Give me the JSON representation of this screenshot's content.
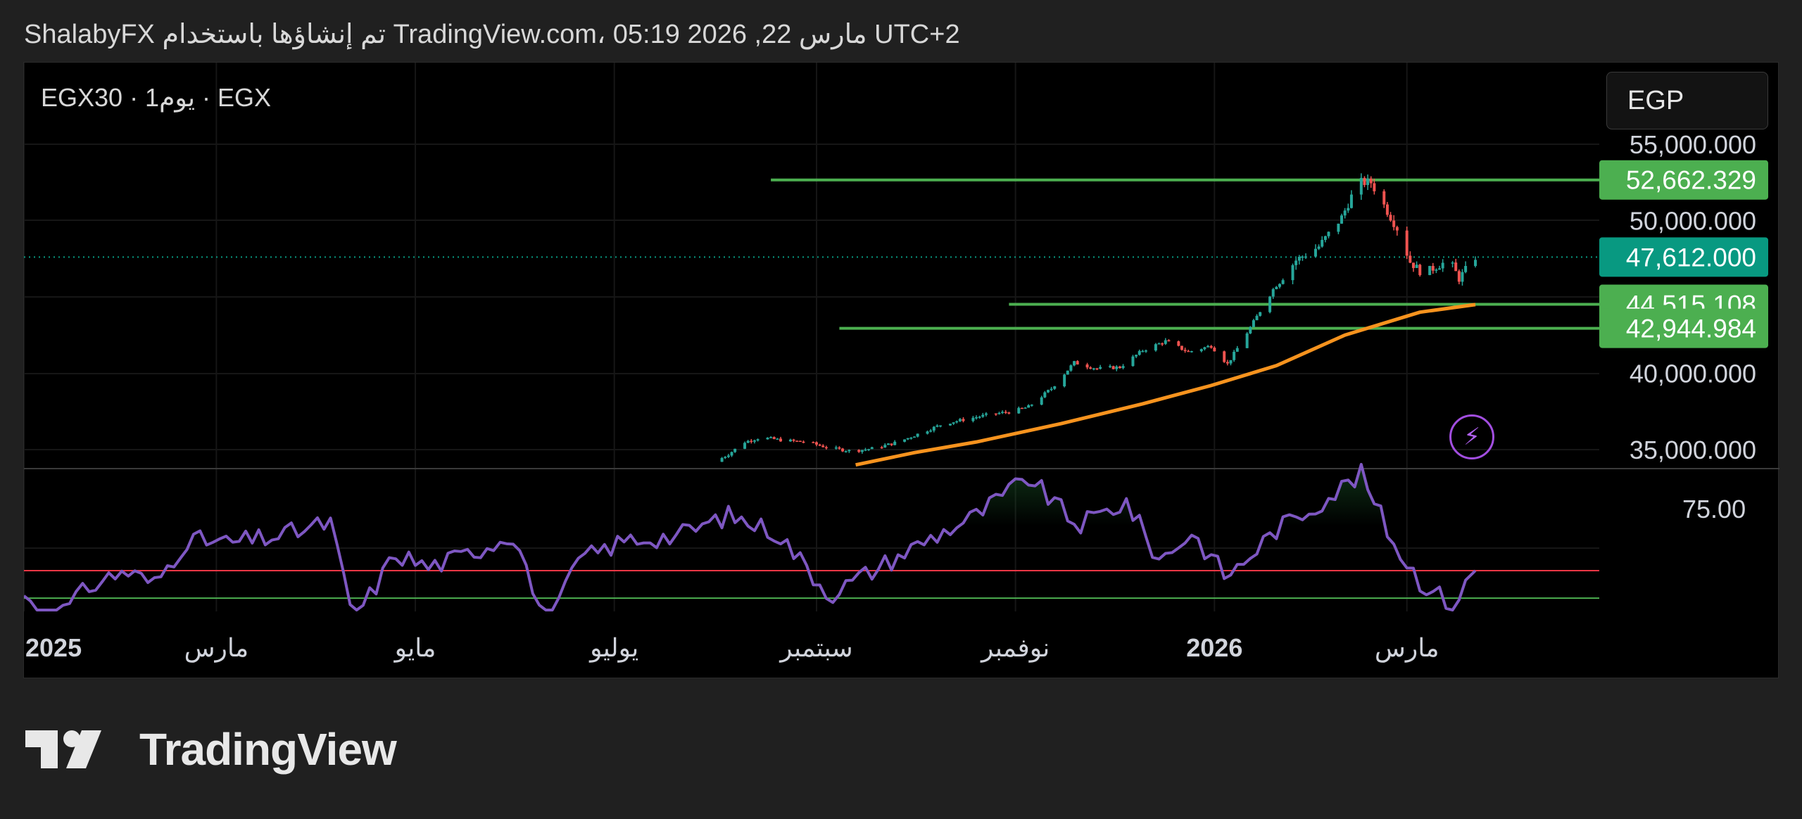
{
  "header": {
    "text": "ShalabyFX تم إنشاؤها باستخدام TradingView.com، 05:19 2026 ,22 مارس UTC+2"
  },
  "symbol": {
    "label": "EGX30 · 1يوم · EGX"
  },
  "currency": "EGP",
  "brand": {
    "name": "TradingView"
  },
  "icons": {
    "bolt": "lightning-bolt-icon",
    "logo": "tradingview-logo-icon"
  },
  "colors": {
    "background": "#000000",
    "page_background": "#202020",
    "candle_up": "#26a69a",
    "candle_down": "#ef5350",
    "level_lines": "#4caf50",
    "moving_average": "#f7931e",
    "oscillator": "#7e57c2",
    "upper_band": "#f23645",
    "lower_band": "#4caf50",
    "current_price_tag": "#089981"
  },
  "chart_data": [
    {
      "type": "candlestick",
      "title": "EGX30 · 1يوم · EGX",
      "currency": "EGP",
      "x_axis_labels": [
        "2025",
        "مارس",
        "مايو",
        "يوليو",
        "سبتمبر",
        "نوفمبر",
        "2026",
        "مارس"
      ],
      "y_axis_labels": [
        "55,000.000",
        "50,000.000",
        "40,000.000",
        "35,000.000"
      ],
      "ylim": [
        33800,
        56200
      ],
      "grid": true,
      "current_price": 47612.0,
      "horizontal_levels": [
        52662.329,
        44515.108,
        42944.984
      ],
      "price_tags": [
        "52,662.329",
        "47,612.000",
        "44,515.108",
        "42,944.984"
      ],
      "close_path": [
        [
          "2025-08-01",
          34200
        ],
        [
          "2025-08-05",
          34700
        ],
        [
          "2025-08-10",
          35500
        ],
        [
          "2025-08-15",
          35800
        ],
        [
          "2025-08-22",
          35600
        ],
        [
          "2025-08-29",
          35500
        ],
        [
          "2025-09-05",
          35100
        ],
        [
          "2025-09-12",
          34900
        ],
        [
          "2025-09-19",
          35100
        ],
        [
          "2025-09-26",
          35500
        ],
        [
          "2025-10-03",
          36100
        ],
        [
          "2025-10-10",
          36700
        ],
        [
          "2025-10-17",
          37000
        ],
        [
          "2025-10-24",
          37300
        ],
        [
          "2025-10-31",
          37500
        ],
        [
          "2025-11-05",
          37800
        ],
        [
          "2025-11-12",
          39000
        ],
        [
          "2025-11-19",
          40700
        ],
        [
          "2025-11-26",
          40300
        ],
        [
          "2025-12-03",
          40400
        ],
        [
          "2025-12-10",
          41500
        ],
        [
          "2025-12-17",
          42100
        ],
        [
          "2025-12-24",
          41400
        ],
        [
          "2025-12-31",
          41800
        ],
        [
          "2026-01-05",
          40600
        ],
        [
          "2026-01-12",
          43000
        ],
        [
          "2026-01-19",
          45500
        ],
        [
          "2026-01-26",
          47400
        ],
        [
          "2026-02-02",
          48300
        ],
        [
          "2026-02-09",
          50200
        ],
        [
          "2026-02-14",
          52500
        ],
        [
          "2026-02-18",
          52500
        ],
        [
          "2026-02-22",
          51000
        ],
        [
          "2026-02-26",
          49500
        ],
        [
          "2026-03-02",
          47300
        ],
        [
          "2026-03-06",
          46500
        ],
        [
          "2026-03-10",
          47000
        ],
        [
          "2026-03-14",
          47400
        ],
        [
          "2026-03-17",
          46200
        ],
        [
          "2026-03-22",
          47612
        ]
      ],
      "moving_average": [
        [
          "2025-09-13",
          34000
        ],
        [
          "2025-10-01",
          34800
        ],
        [
          "2025-10-20",
          35500
        ],
        [
          "2025-11-15",
          36700
        ],
        [
          "2025-12-10",
          38000
        ],
        [
          "2025-12-31",
          39200
        ],
        [
          "2026-01-20",
          40500
        ],
        [
          "2026-02-10",
          42500
        ],
        [
          "2026-03-05",
          44000
        ],
        [
          "2026-03-22",
          44500
        ]
      ]
    },
    {
      "type": "line",
      "title": "oscillator",
      "y_axis_labels": [
        "75.00"
      ],
      "upper_band": 57,
      "lower_band": 49,
      "series": [
        {
          "values": [
            [
              "2025-01-01",
              50
            ],
            [
              "2025-01-08",
              41
            ],
            [
              "2025-01-15",
              47
            ],
            [
              "2025-01-22",
              53
            ],
            [
              "2025-02-01",
              57
            ],
            [
              "2025-02-10",
              53
            ],
            [
              "2025-02-20",
              66
            ],
            [
              "2025-03-05",
              65
            ],
            [
              "2025-03-20",
              67
            ],
            [
              "2025-04-05",
              71
            ],
            [
              "2025-04-12",
              42
            ],
            [
              "2025-04-25",
              62
            ],
            [
              "2025-05-05",
              58
            ],
            [
              "2025-05-15",
              61
            ],
            [
              "2025-06-01",
              68
            ],
            [
              "2025-06-10",
              38
            ],
            [
              "2025-06-20",
              60
            ],
            [
              "2025-07-05",
              66
            ],
            [
              "2025-07-20",
              67
            ],
            [
              "2025-08-05",
              73
            ],
            [
              "2025-08-20",
              68
            ],
            [
              "2025-09-05",
              50
            ],
            [
              "2025-09-20",
              58
            ],
            [
              "2025-10-05",
              66
            ],
            [
              "2025-10-20",
              73
            ],
            [
              "2025-11-05",
              84
            ],
            [
              "2025-11-20",
              70
            ],
            [
              "2025-12-05",
              77
            ],
            [
              "2025-12-15",
              60
            ],
            [
              "2025-12-25",
              68
            ],
            [
              "2026-01-05",
              55
            ],
            [
              "2026-01-20",
              69
            ],
            [
              "2026-02-01",
              76
            ],
            [
              "2026-02-15",
              85
            ],
            [
              "2026-02-25",
              65
            ],
            [
              "2026-03-05",
              54
            ],
            [
              "2026-03-15",
              47
            ],
            [
              "2026-03-22",
              57
            ]
          ]
        }
      ]
    }
  ]
}
